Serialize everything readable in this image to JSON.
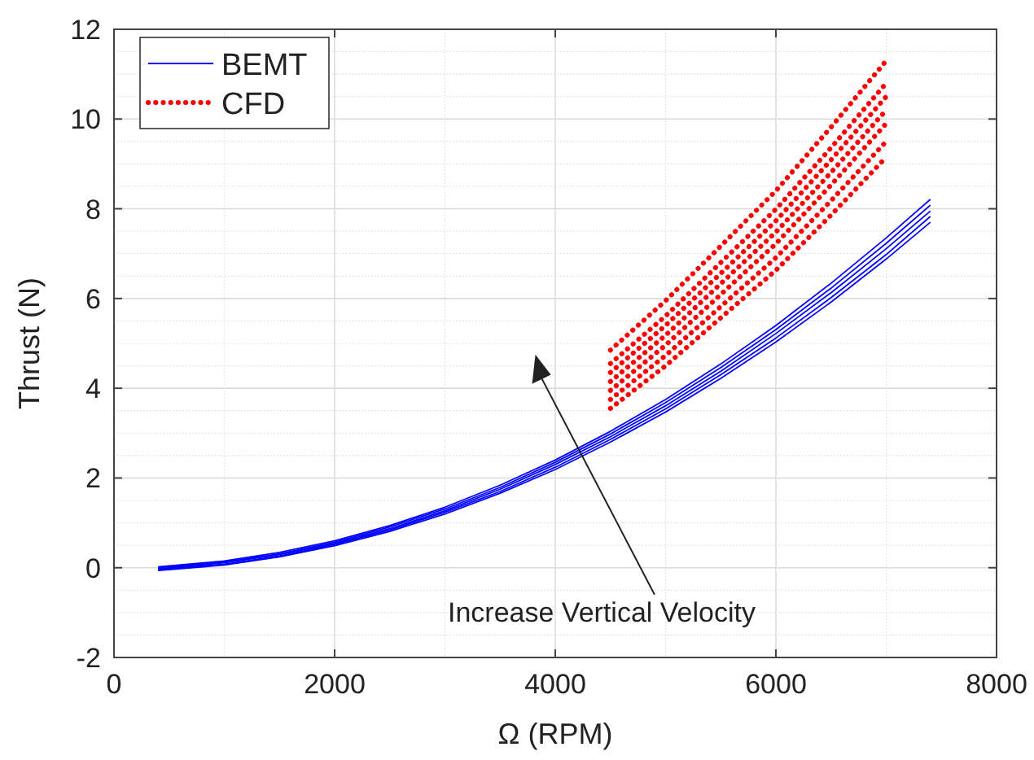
{
  "chart_data": {
    "type": "line",
    "xlabel": "Ω (RPM)",
    "ylabel": "Thrust (N)",
    "xlim": [
      0,
      8000
    ],
    "ylim": [
      -2,
      12
    ],
    "xticks": [
      0,
      2000,
      4000,
      6000,
      8000
    ],
    "yticks": [
      -2,
      0,
      2,
      4,
      6,
      8,
      10,
      12
    ],
    "grid": true,
    "legend": "top left",
    "annotations": [
      "Increase Vertical Velocity"
    ],
    "series": [
      {
        "name": "BEMT",
        "color": "#0000ff",
        "line_style": "solid",
        "x": [
          400,
          1000,
          1500,
          2000,
          2500,
          3000,
          3500,
          4000,
          4500,
          5000,
          5500,
          6000,
          6500,
          7000,
          7400
        ],
        "values": [
          0.02,
          0.15,
          0.34,
          0.6,
          0.94,
          1.35,
          1.84,
          2.4,
          3.04,
          3.75,
          4.54,
          5.4,
          6.34,
          7.35,
          8.21
        ]
      },
      {
        "color": "#0000ff",
        "line_style": "solid",
        "x": [
          400,
          1000,
          1500,
          2000,
          2500,
          3000,
          3500,
          4000,
          4500,
          5000,
          5500,
          6000,
          6500,
          7000,
          7400
        ],
        "values": [
          0.0,
          0.13,
          0.31,
          0.57,
          0.91,
          1.31,
          1.79,
          2.35,
          2.98,
          3.68,
          4.46,
          5.31,
          6.23,
          7.23,
          8.08
        ]
      },
      {
        "color": "#0000ff",
        "line_style": "solid",
        "x": [
          400,
          1000,
          1500,
          2000,
          2500,
          3000,
          3500,
          4000,
          4500,
          5000,
          5500,
          6000,
          6500,
          7000,
          7400
        ],
        "values": [
          -0.02,
          0.11,
          0.29,
          0.54,
          0.87,
          1.27,
          1.75,
          2.3,
          2.92,
          3.61,
          4.38,
          5.22,
          6.13,
          7.11,
          7.95
        ]
      },
      {
        "color": "#0000ff",
        "line_style": "solid",
        "x": [
          400,
          1000,
          1500,
          2000,
          2500,
          3000,
          3500,
          4000,
          4500,
          5000,
          5500,
          6000,
          6500,
          7000,
          7400
        ],
        "values": [
          -0.04,
          0.08,
          0.26,
          0.52,
          0.84,
          1.24,
          1.7,
          2.24,
          2.86,
          3.54,
          4.3,
          5.12,
          6.02,
          6.98,
          7.83
        ]
      },
      {
        "color": "#0000ff",
        "line_style": "solid",
        "x": [
          400,
          1000,
          1500,
          2000,
          2500,
          3000,
          3500,
          4000,
          4500,
          5000,
          5500,
          6000,
          6500,
          7000,
          7400
        ],
        "values": [
          -0.06,
          0.06,
          0.24,
          0.49,
          0.81,
          1.2,
          1.66,
          2.19,
          2.8,
          3.47,
          4.22,
          5.03,
          5.92,
          6.88,
          7.7
        ]
      },
      {
        "name": "CFD",
        "color": "#ff0000",
        "line_style": "dotted",
        "x": [
          4500,
          5000,
          5500,
          6000,
          6500,
          7000
        ],
        "values": [
          4.85,
          5.95,
          7.17,
          8.4,
          9.82,
          11.3
        ]
      },
      {
        "color": "#ff0000",
        "line_style": "dotted",
        "x": [
          4500,
          5000,
          5500,
          6000,
          6500,
          7000
        ],
        "values": [
          4.55,
          5.61,
          6.8,
          7.99,
          9.36,
          10.8
        ]
      },
      {
        "color": "#ff0000",
        "line_style": "dotted",
        "x": [
          4500,
          5000,
          5500,
          6000,
          6500,
          7000
        ],
        "values": [
          4.35,
          5.4,
          6.56,
          7.73,
          9.09,
          10.5
        ]
      },
      {
        "color": "#ff0000",
        "line_style": "dotted",
        "x": [
          4500,
          5000,
          5500,
          6000,
          6500,
          7000
        ],
        "values": [
          4.15,
          5.18,
          6.33,
          7.48,
          8.81,
          10.2
        ]
      },
      {
        "color": "#ff0000",
        "line_style": "dotted",
        "x": [
          4500,
          5000,
          5500,
          6000,
          6500,
          7000
        ],
        "values": [
          3.95,
          4.96,
          6.09,
          7.22,
          8.53,
          9.9
        ]
      },
      {
        "color": "#ff0000",
        "line_style": "dotted",
        "x": [
          4500,
          5000,
          5500,
          6000,
          6500,
          7000
        ],
        "values": [
          3.75,
          4.73,
          5.82,
          6.91,
          8.18,
          9.5
        ]
      },
      {
        "color": "#ff0000",
        "line_style": "dotted",
        "x": [
          4500,
          5000,
          5500,
          6000,
          6500,
          7000
        ],
        "values": [
          3.55,
          4.5,
          5.57,
          6.63,
          7.86,
          9.15
        ]
      }
    ]
  }
}
